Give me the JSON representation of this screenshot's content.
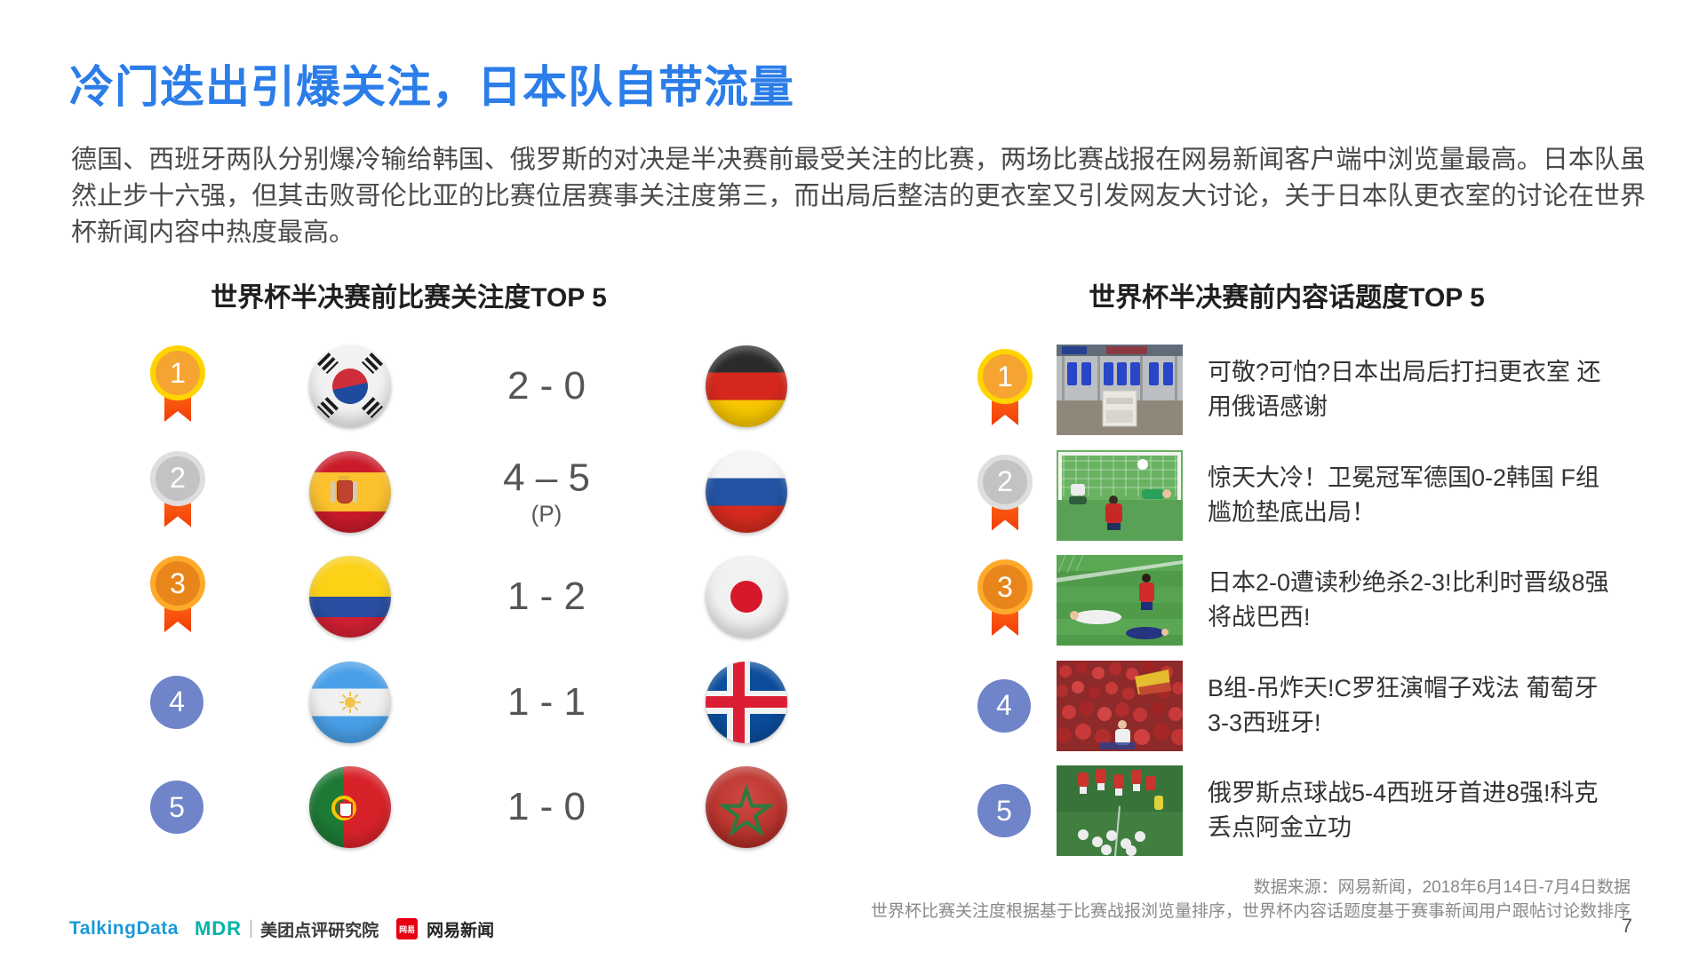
{
  "page": {
    "title": "冷门迭出引爆关注，日本队自带流量",
    "body": "德国、西班牙两队分别爆冷输给韩国、俄罗斯的对决是半决赛前最受关注的比赛，两场比赛战报在网易新闻客户端中浏览量最高。日本队虽然止步十六强，但其击败哥伦比亚的比赛位居赛事关注度第三，而出局后整洁的更衣室又引发网友大讨论，关于日本队更衣室的讨论在世界杯新闻内容中热度最高。",
    "page_number": "7"
  },
  "left_section": {
    "title": "世界杯半决赛前比赛关注度TOP 5",
    "rows": [
      {
        "rank": "1",
        "medal": "gold",
        "team1": "kr",
        "team1_name": "south-korea",
        "score": "2 - 0",
        "note": "",
        "team2": "de",
        "team2_name": "germany"
      },
      {
        "rank": "2",
        "medal": "silver",
        "team1": "es",
        "team1_name": "spain",
        "score": "4 – 5",
        "note": "(P)",
        "team2": "ru",
        "team2_name": "russia"
      },
      {
        "rank": "3",
        "medal": "bronze",
        "team1": "co",
        "team1_name": "colombia",
        "score": "1 - 2",
        "note": "",
        "team2": "jp",
        "team2_name": "japan"
      },
      {
        "rank": "4",
        "medal": "plain",
        "team1": "ar",
        "team1_name": "argentina",
        "score": "1 - 1",
        "note": "",
        "team2": "is",
        "team2_name": "iceland"
      },
      {
        "rank": "5",
        "medal": "plain",
        "team1": "pt",
        "team1_name": "portugal",
        "score": "1 - 0",
        "note": "",
        "team2": "ma",
        "team2_name": "morocco"
      }
    ]
  },
  "right_section": {
    "title": "世界杯半决赛前内容话题度TOP 5",
    "items": [
      {
        "rank": "1",
        "medal": "gold",
        "thumbnail": "locker-room-photo",
        "headline": "可敬?可怕?日本出局后打扫更衣室 还用俄语感谢"
      },
      {
        "rank": "2",
        "medal": "silver",
        "thumbnail": "germany-korea-goal-photo",
        "headline": "惊天大冷！卫冕冠军德国0-2韩国 F组尴尬垫底出局！"
      },
      {
        "rank": "3",
        "medal": "bronze",
        "thumbnail": "japan-belgium-photo",
        "headline": "日本2-0遭读秒绝杀2-3!比利时晋级8强将战巴西!"
      },
      {
        "rank": "4",
        "medal": "plain",
        "thumbnail": "spain-fans-photo",
        "headline": "B组-吊炸天!C罗狂演帽子戏法 葡萄牙3-3西班牙!"
      },
      {
        "rank": "5",
        "medal": "plain",
        "thumbnail": "russia-celebration-photo",
        "headline": "俄罗斯点球战5-4西班牙首进8强!科克丢点阿金立功"
      }
    ]
  },
  "footer": {
    "source_line1": "数据来源：网易新闻，2018年6月14日-7月4日数据",
    "source_line2": "世界杯比赛关注度根据基于比赛战报浏览量排序，世界杯内容话题度基于赛事新闻用户跟帖讨论数排序",
    "logos": {
      "talkingdata": "TalkingData",
      "mdr": "MDR",
      "meituan": "美团点评研究院",
      "netease_badge": "网易",
      "netease": "网易新闻"
    }
  },
  "colors": {
    "title_blue": "#2b7de9",
    "medal_gold": "#ffd400",
    "medal_silver": "#dedede",
    "medal_bronze": "#ffaa2b",
    "ribbon_orange": "#ff4e12",
    "rank_blue": "#6f84c9"
  }
}
